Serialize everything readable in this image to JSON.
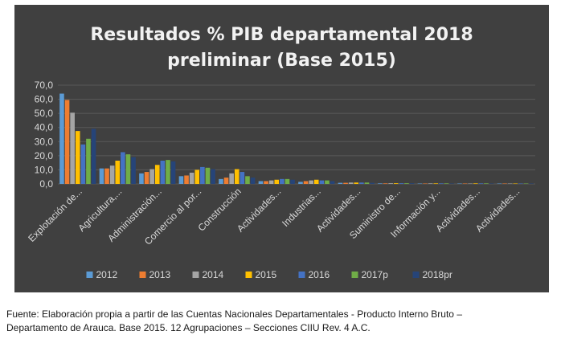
{
  "chart_data": {
    "type": "bar",
    "title_lines": [
      "Resultados % PIB departamental 2018",
      "preliminar (Base 2015)"
    ],
    "categories": [
      "Explotación de...",
      "Agricultura,...",
      "Administración...",
      "Comercio al por...",
      "Construcción",
      "Actividades...",
      "Industrias...",
      "Actividades...",
      "Suministro de...",
      "Información y...",
      "Actividades...",
      "Actividades..."
    ],
    "series": [
      {
        "name": "2012",
        "color": "#5b9bd5",
        "values": [
          64.0,
          11.0,
          7.5,
          5.5,
          3.5,
          2.0,
          1.5,
          0.8,
          0.4,
          0.3,
          0.3,
          0.3
        ]
      },
      {
        "name": "2013",
        "color": "#ed7d31",
        "values": [
          59.5,
          11.0,
          8.5,
          6.0,
          4.5,
          2.0,
          2.0,
          0.8,
          0.4,
          0.3,
          0.3,
          0.3
        ]
      },
      {
        "name": "2014",
        "color": "#a5a5a5",
        "values": [
          50.5,
          13.0,
          10.5,
          8.0,
          7.5,
          2.5,
          2.5,
          1.0,
          0.5,
          0.4,
          0.3,
          0.3
        ]
      },
      {
        "name": "2015",
        "color": "#ffc000",
        "values": [
          37.5,
          16.5,
          13.5,
          10.0,
          10.5,
          3.0,
          3.0,
          1.0,
          0.5,
          0.4,
          0.4,
          0.3
        ]
      },
      {
        "name": "2016",
        "color": "#4472c4",
        "values": [
          28.0,
          22.5,
          16.5,
          12.0,
          8.5,
          3.5,
          2.5,
          1.0,
          0.5,
          0.4,
          0.4,
          0.3
        ]
      },
      {
        "name": "2017p",
        "color": "#70ad47",
        "values": [
          32.0,
          21.0,
          17.0,
          11.5,
          5.5,
          3.5,
          2.5,
          1.0,
          0.5,
          0.4,
          0.4,
          0.3
        ]
      },
      {
        "name": "2018pr",
        "color": "#264478",
        "values": [
          39.0,
          19.0,
          16.0,
          10.5,
          4.5,
          3.0,
          2.0,
          0.8,
          0.5,
          0.3,
          0.3,
          0.3
        ]
      }
    ],
    "y_ticks": [
      "0,0",
      "10,0",
      "20,0",
      "30,0",
      "40,0",
      "50,0",
      "60,0",
      "70,0"
    ],
    "ylim": [
      0,
      70
    ],
    "xlabel": "",
    "ylabel": "",
    "grid": true,
    "legend": "bottom",
    "background": "#404040",
    "text_color": "#d9d9d9",
    "title_color": "#f2f2f2",
    "grid_color": "#595959"
  },
  "caption": {
    "line1": "Fuente: Elaboración propia a partir de las Cuentas Nacionales Departamentales - Producto Interno Bruto –",
    "line2": "Departamento de Arauca. Base 2015. 12 Agrupaciones – Secciones CIIU Rev. 4 A.C."
  }
}
